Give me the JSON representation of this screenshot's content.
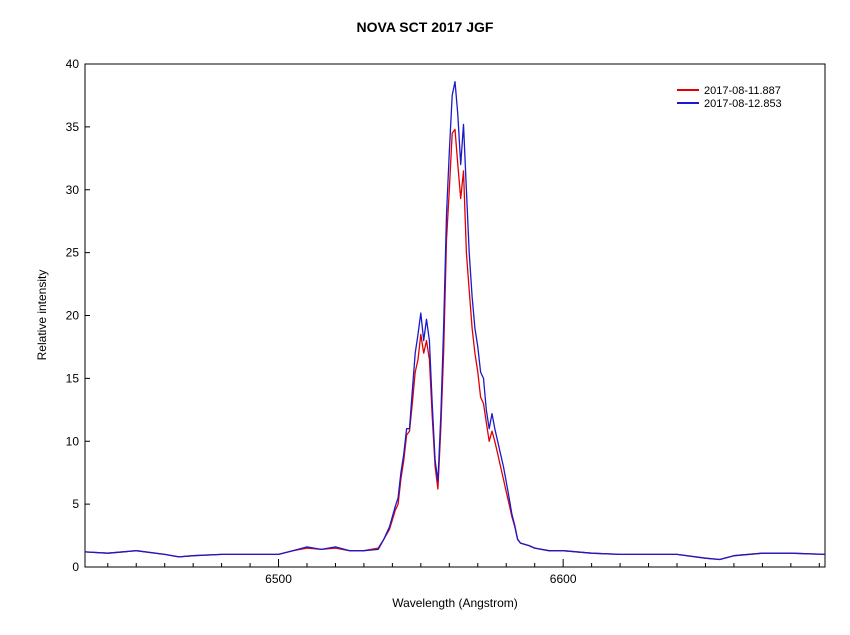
{
  "chart_data": {
    "type": "line",
    "title": "NOVA SCT 2017   JGF",
    "xlabel": "Wavelength (Angstrom)",
    "ylabel": "Relative intensity",
    "xlim": [
      6432,
      6692
    ],
    "ylim": [
      0,
      40
    ],
    "xticks": [
      6500,
      6600
    ],
    "yticks": [
      0,
      5,
      10,
      15,
      20,
      25,
      30,
      35,
      40
    ],
    "x_minor_step": 10,
    "grid": false,
    "legend_position": "top-right",
    "series": [
      {
        "name": "2017-08-11.887",
        "color": "#e00000",
        "x": [
          6432,
          6440,
          6450,
          6460,
          6465,
          6470,
          6480,
          6490,
          6500,
          6505,
          6510,
          6515,
          6520,
          6525,
          6530,
          6535,
          6537,
          6539,
          6541,
          6542,
          6543,
          6544,
          6545,
          6546,
          6547,
          6548,
          6549,
          6550,
          6551,
          6552,
          6553,
          6554,
          6555,
          6556,
          6557,
          6558,
          6559,
          6560,
          6561,
          6562,
          6563,
          6564,
          6565,
          6566,
          6567,
          6568,
          6569,
          6570,
          6571,
          6572,
          6573,
          6574,
          6575,
          6576,
          6577,
          6578,
          6579,
          6580,
          6581,
          6582,
          6583,
          6584,
          6585,
          6588,
          6590,
          6595,
          6600,
          6610,
          6620,
          6630,
          6640,
          6650,
          6655,
          6660,
          6670,
          6680,
          6692
        ],
        "y": [
          1.2,
          1.1,
          1.3,
          1.0,
          0.8,
          0.9,
          1.0,
          1.0,
          1.0,
          1.3,
          1.5,
          1.4,
          1.5,
          1.3,
          1.3,
          1.5,
          2.2,
          3.0,
          4.5,
          5.0,
          7.0,
          8.5,
          10.5,
          10.8,
          13.0,
          15.5,
          16.5,
          18.5,
          17.0,
          18.0,
          16.5,
          12.0,
          8.0,
          6.2,
          11.0,
          17.0,
          26.0,
          30.0,
          34.5,
          34.8,
          32.0,
          29.3,
          31.5,
          25.0,
          22.0,
          19.0,
          17.0,
          15.5,
          13.5,
          13.0,
          11.5,
          10.0,
          10.8,
          10.0,
          9.0,
          8.0,
          7.0,
          6.0,
          5.0,
          4.0,
          3.2,
          2.2,
          1.9,
          1.7,
          1.5,
          1.3,
          1.3,
          1.1,
          1.0,
          1.0,
          1.0,
          0.7,
          0.6,
          0.9,
          1.1,
          1.1,
          1.0
        ]
      },
      {
        "name": "2017-08-12.853",
        "color": "#1a1acc",
        "x": [
          6432,
          6440,
          6450,
          6460,
          6465,
          6470,
          6480,
          6490,
          6500,
          6505,
          6510,
          6515,
          6520,
          6525,
          6530,
          6535,
          6537,
          6539,
          6541,
          6542,
          6543,
          6544,
          6545,
          6546,
          6547,
          6548,
          6549,
          6550,
          6551,
          6552,
          6553,
          6554,
          6555,
          6556,
          6557,
          6558,
          6559,
          6560,
          6561,
          6562,
          6563,
          6564,
          6565,
          6566,
          6567,
          6568,
          6569,
          6570,
          6571,
          6572,
          6573,
          6574,
          6575,
          6576,
          6577,
          6578,
          6579,
          6580,
          6581,
          6582,
          6583,
          6584,
          6585,
          6588,
          6590,
          6595,
          6600,
          6610,
          6620,
          6630,
          6640,
          6650,
          6655,
          6660,
          6670,
          6680,
          6692
        ],
        "y": [
          1.2,
          1.1,
          1.3,
          1.0,
          0.8,
          0.9,
          1.0,
          1.0,
          1.0,
          1.3,
          1.6,
          1.4,
          1.6,
          1.3,
          1.3,
          1.4,
          2.2,
          3.2,
          4.8,
          5.5,
          7.5,
          9.0,
          11.0,
          11.0,
          14.0,
          17.0,
          18.5,
          20.2,
          18.0,
          19.7,
          18.0,
          13.0,
          8.5,
          6.8,
          12.0,
          19.0,
          28.0,
          33.0,
          37.5,
          38.6,
          36.0,
          32.0,
          35.2,
          30.0,
          25.0,
          21.5,
          19.0,
          17.5,
          15.5,
          15.0,
          12.5,
          11.0,
          12.2,
          11.0,
          10.0,
          9.0,
          8.0,
          6.8,
          5.5,
          4.2,
          3.3,
          2.2,
          1.9,
          1.7,
          1.5,
          1.3,
          1.3,
          1.1,
          1.0,
          1.0,
          1.0,
          0.7,
          0.6,
          0.9,
          1.1,
          1.1,
          1.0
        ]
      }
    ]
  }
}
